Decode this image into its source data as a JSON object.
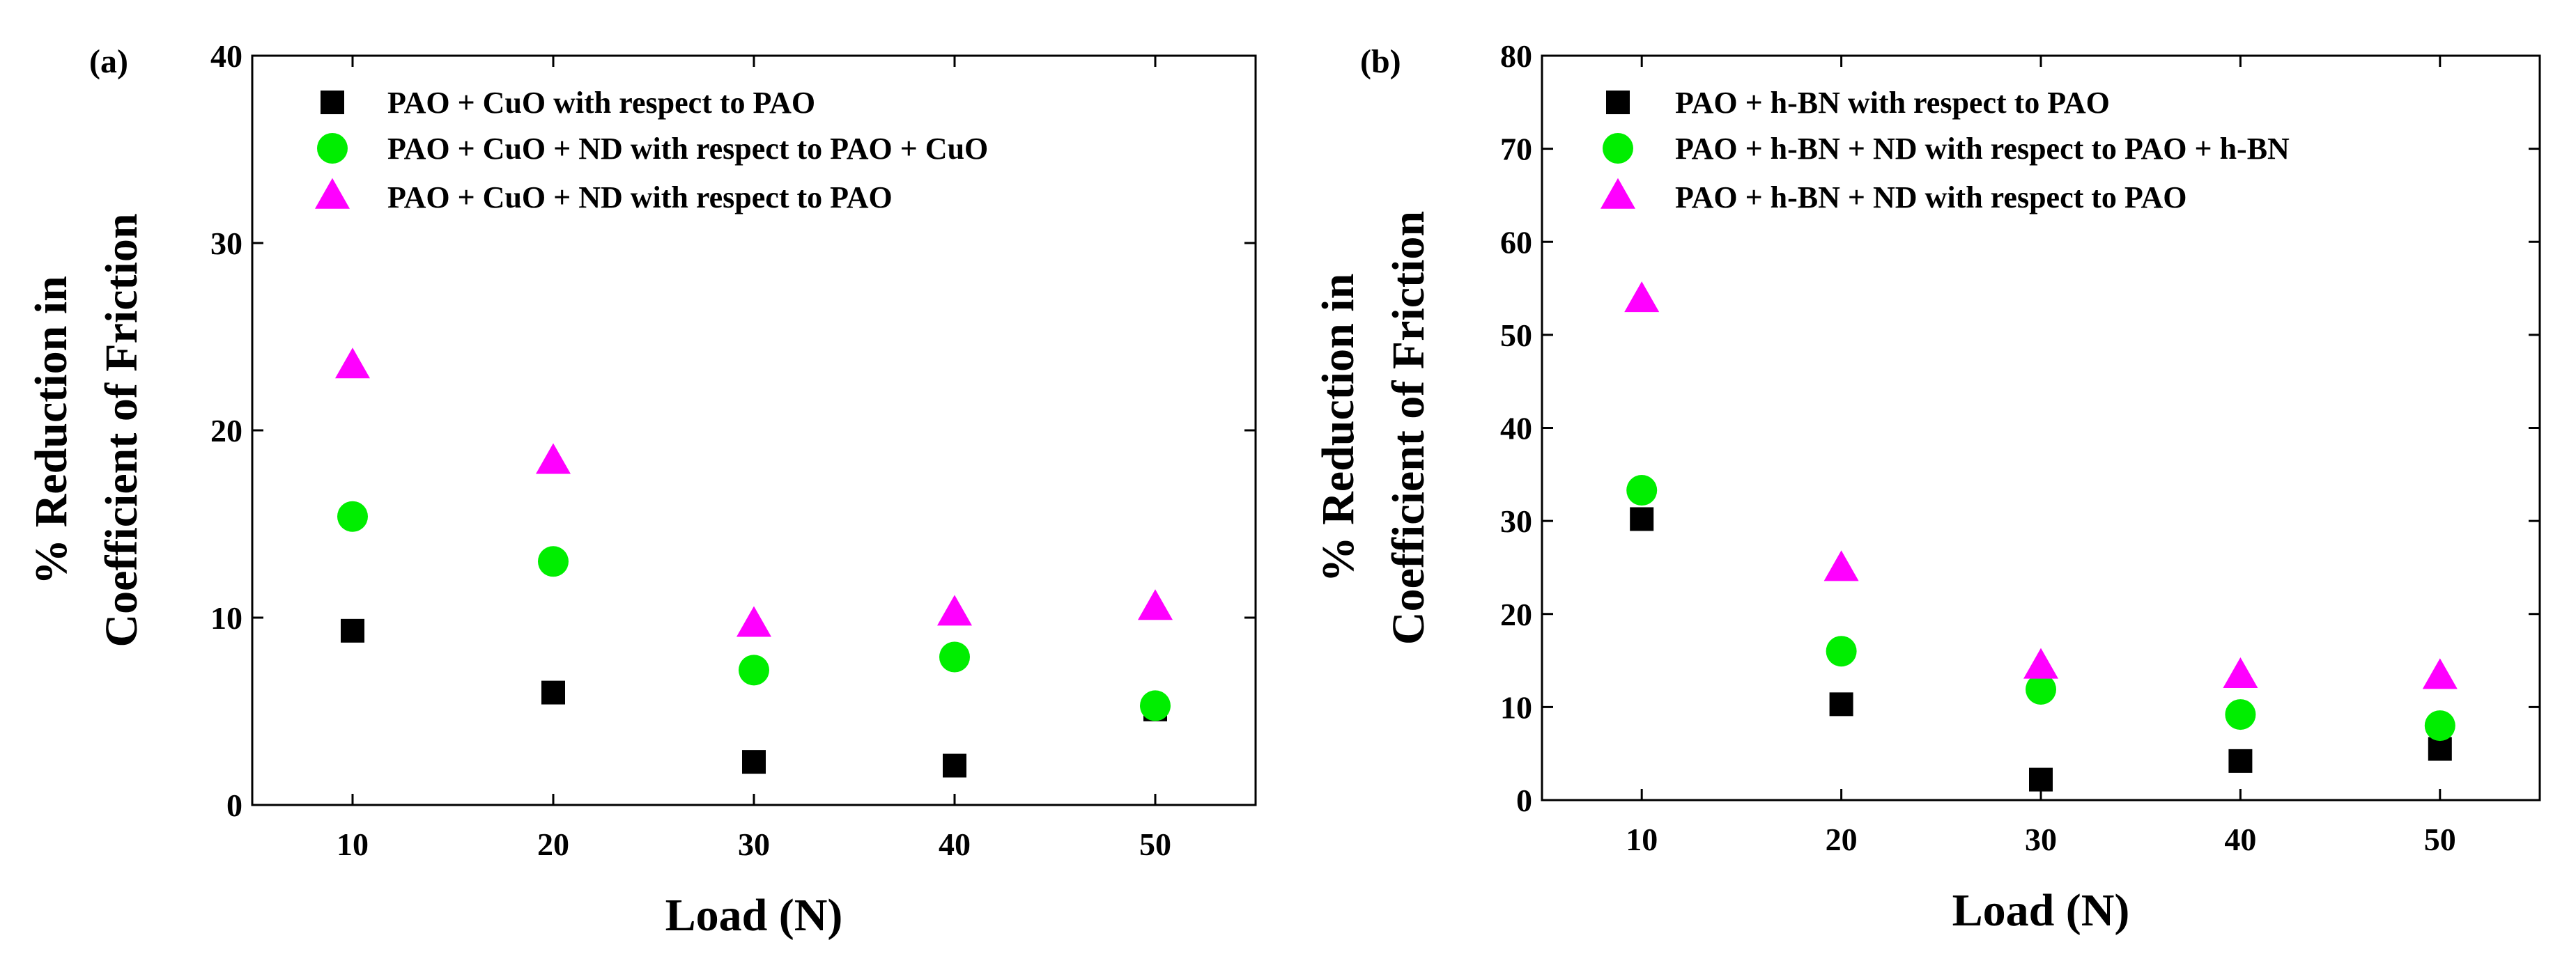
{
  "chart_data": [
    {
      "type": "scatter",
      "panel_label": "(a)",
      "title": "",
      "xlabel": "Load (N)",
      "ylabel_lines": [
        "% Reduction in",
        "Coefficient of Friction"
      ],
      "xlim": [
        5,
        55
      ],
      "ylim": [
        0,
        40
      ],
      "xticks": [
        10,
        20,
        30,
        40,
        50
      ],
      "yticks": [
        0,
        10,
        20,
        30,
        40
      ],
      "grid": false,
      "legend_position": "top-left",
      "series": [
        {
          "name": "PAO + CuO with respect to PAO",
          "marker": "square",
          "color": "#000000",
          "x": [
            10,
            20,
            30,
            40,
            50
          ],
          "y": [
            9.3,
            6.0,
            2.3,
            2.1,
            5.1
          ]
        },
        {
          "name": "PAO + CuO + ND with respect to PAO + CuO",
          "marker": "circle",
          "color": "#00ee00",
          "x": [
            10,
            20,
            30,
            40,
            50
          ],
          "y": [
            15.4,
            13.0,
            7.2,
            7.9,
            5.3
          ]
        },
        {
          "name": "PAO + CuO + ND with respect to PAO",
          "marker": "triangle",
          "color": "#ff00ff",
          "x": [
            10,
            20,
            30,
            40,
            50
          ],
          "y": [
            23.4,
            18.3,
            9.6,
            10.2,
            10.5
          ]
        }
      ]
    },
    {
      "type": "scatter",
      "panel_label": "(b)",
      "title": "",
      "xlabel": "Load (N)",
      "ylabel_lines": [
        "% Reduction in",
        "Coefficient of Friction"
      ],
      "xlim": [
        5,
        55
      ],
      "ylim": [
        0,
        80
      ],
      "xticks": [
        10,
        20,
        30,
        40,
        50
      ],
      "yticks": [
        0,
        10,
        20,
        30,
        40,
        50,
        60,
        70,
        80
      ],
      "grid": false,
      "legend_position": "top-left",
      "series": [
        {
          "name": "PAO + h-BN with respect to PAO",
          "marker": "square",
          "color": "#000000",
          "x": [
            10,
            20,
            30,
            40,
            50
          ],
          "y": [
            30.2,
            10.3,
            2.2,
            4.2,
            5.5
          ]
        },
        {
          "name": "PAO + h-BN + ND with respect to PAO + h-BN",
          "marker": "circle",
          "color": "#00ee00",
          "x": [
            10,
            20,
            30,
            40,
            50
          ],
          "y": [
            33.3,
            16.0,
            11.9,
            9.2,
            8.0
          ]
        },
        {
          "name": "PAO + h-BN + ND with respect to PAO",
          "marker": "triangle",
          "color": "#ff00ff",
          "x": [
            10,
            20,
            30,
            40,
            50
          ],
          "y": [
            53.7,
            24.8,
            14.3,
            13.3,
            13.2
          ]
        }
      ]
    }
  ]
}
